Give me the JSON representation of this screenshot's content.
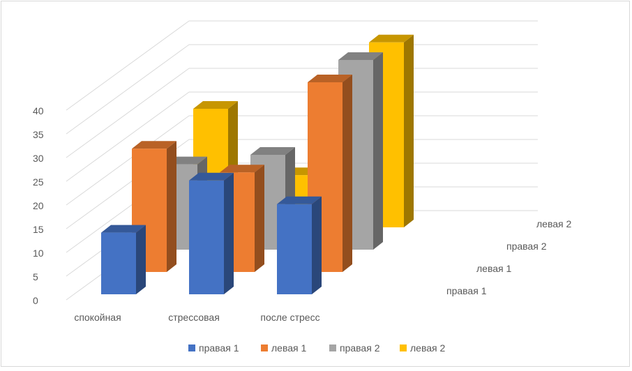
{
  "chart_data": {
    "type": "bar",
    "style": "3d-clustered-depth",
    "categories": [
      "спокойная",
      "стрессовая",
      "после стресс"
    ],
    "series": [
      {
        "name": "правая 1",
        "color": "#4472C4",
        "values": [
          13,
          24,
          19
        ]
      },
      {
        "name": "левая 1",
        "color": "#ED7D31",
        "values": [
          26,
          21,
          40
        ]
      },
      {
        "name": "правая 2",
        "color": "#A5A5A5",
        "values": [
          18,
          20,
          40
        ]
      },
      {
        "name": "левая 2",
        "color": "#FFC000",
        "values": [
          25,
          11,
          39
        ]
      }
    ],
    "y_ticks": [
      "0",
      "5",
      "10",
      "15",
      "20",
      "25",
      "30",
      "35",
      "40"
    ],
    "ylim": [
      0,
      40
    ],
    "grid": true,
    "legend_position": "bottom"
  }
}
